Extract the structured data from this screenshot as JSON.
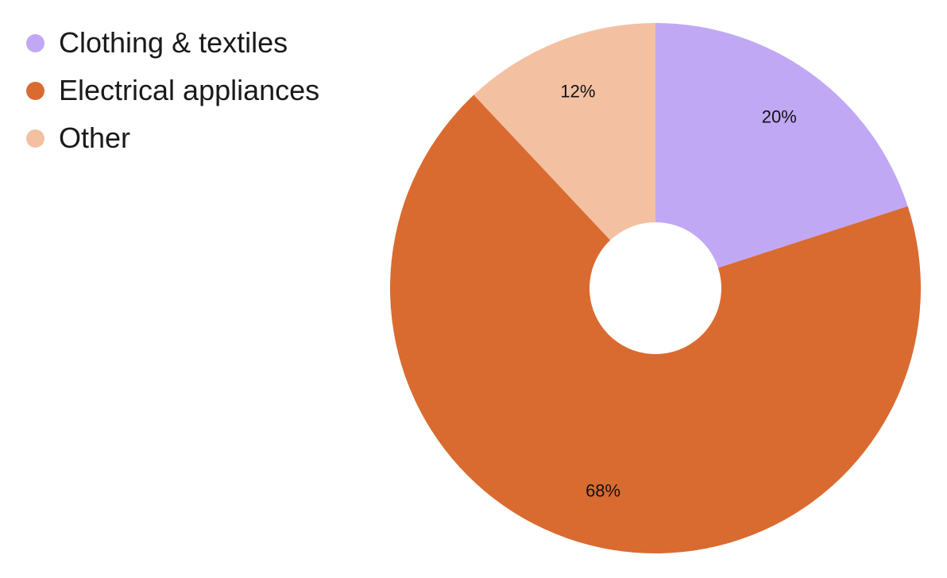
{
  "chart_data": {
    "type": "pie",
    "donut": true,
    "legend_position": "top-left",
    "slices": [
      {
        "name": "Clothing & textiles",
        "value": 20,
        "label": "20%",
        "color": "#c1a8f4"
      },
      {
        "name": "Electrical appliances",
        "value": 68,
        "label": "68%",
        "color": "#d96b31"
      },
      {
        "name": "Other",
        "value": 12,
        "label": "12%",
        "color": "#f4c0a2"
      }
    ]
  }
}
